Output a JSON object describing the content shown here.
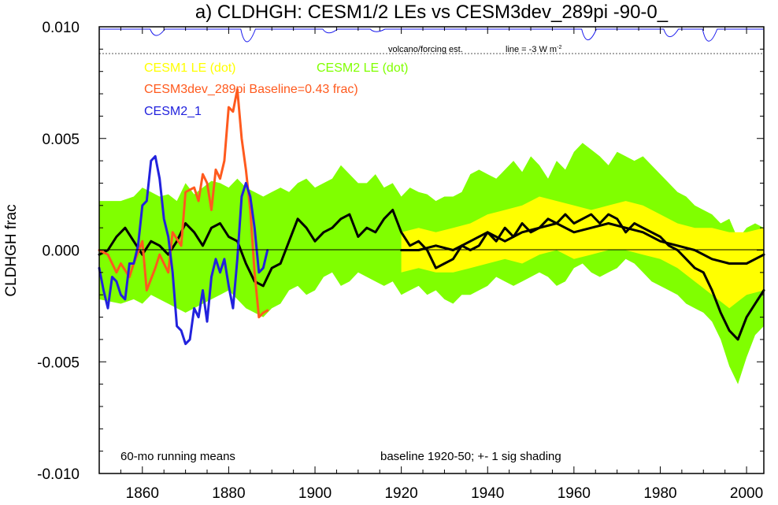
{
  "chart_data": {
    "type": "line",
    "title": "a) CLDHGH: CESM1/2 LEs vs CESM3dev_289pi -90-0_",
    "ylabel": "CLDHGH frac",
    "xlabel": "",
    "xlim": [
      1850,
      2004
    ],
    "ylim": [
      -0.01,
      0.01
    ],
    "x_ticks": [
      1860,
      1880,
      1900,
      1920,
      1940,
      1960,
      1980,
      2000
    ],
    "y_ticks": [
      {
        "value": 0.01,
        "label": "0.010"
      },
      {
        "value": 0.005,
        "label": "0.005"
      },
      {
        "value": 0.0,
        "label": "0.000"
      },
      {
        "value": -0.005,
        "label": "-0.005"
      },
      {
        "value": -0.01,
        "label": "-0.010"
      }
    ],
    "grid": false,
    "legend_entries": {
      "cesm1": "CESM1 LE (dot)",
      "cesm2": "CESM2 LE (dot)",
      "cesm3": "CESM3dev_289pi Baseline=0.43 frac)",
      "cesm2_1": "CESM2_1"
    },
    "annotations": {
      "volcano": "volcano/forcing est.",
      "line_label": "line = -3 W m",
      "line_sup": "-2",
      "running": "60-mo running means",
      "baseline": "baseline 1920-50; +- 1 sig shading"
    },
    "colors": {
      "cesm1_fill": "#ffff00",
      "cesm2_fill": "#80ff00",
      "cesm3": "#ff5a1e",
      "cesm2_1": "#2222dd",
      "ensemble_mean": "#000000",
      "volcano": "#1a1aee"
    },
    "volcano_dips": [
      {
        "year": 1863,
        "depth": 0.5
      },
      {
        "year": 1884,
        "depth": 1.0
      },
      {
        "year": 1903,
        "depth": 0.3
      },
      {
        "year": 1914,
        "depth": 0.2
      },
      {
        "year": 1963,
        "depth": 0.85
      },
      {
        "year": 1982,
        "depth": 0.6
      },
      {
        "year": 1991,
        "depth": 0.95
      }
    ],
    "series": [
      {
        "name": "CESM2 LE (dot)",
        "kind": "band",
        "x": [
          1850,
          1855,
          1858,
          1860,
          1862,
          1864,
          1866,
          1868,
          1870,
          1872,
          1874,
          1876,
          1878,
          1880,
          1882,
          1884,
          1886,
          1888,
          1890,
          1892,
          1894,
          1896,
          1898,
          1900,
          1902,
          1904,
          1906,
          1908,
          1910,
          1912,
          1914,
          1916,
          1918,
          1920,
          1922,
          1924,
          1926,
          1928,
          1930,
          1932,
          1934,
          1936,
          1938,
          1940,
          1942,
          1944,
          1946,
          1948,
          1950,
          1952,
          1954,
          1956,
          1958,
          1960,
          1962,
          1964,
          1966,
          1968,
          1970,
          1972,
          1974,
          1976,
          1978,
          1980,
          1982,
          1984,
          1986,
          1988,
          1990,
          1992,
          1994,
          1996,
          1998,
          2000,
          2002,
          2004
        ],
        "upper": [
          0.0022,
          0.0022,
          0.0024,
          0.0028,
          0.0026,
          0.0024,
          0.0025,
          0.0022,
          0.003,
          0.0025,
          0.0028,
          0.0031,
          0.003,
          0.0028,
          0.0032,
          0.0028,
          0.0026,
          0.0024,
          0.0026,
          0.0028,
          0.0026,
          0.003,
          0.0032,
          0.0028,
          0.003,
          0.0032,
          0.0038,
          0.0034,
          0.003,
          0.003,
          0.0034,
          0.0028,
          0.003,
          0.0024,
          0.0028,
          0.0026,
          0.0025,
          0.0022,
          0.0024,
          0.0024,
          0.0026,
          0.0034,
          0.0036,
          0.0034,
          0.0032,
          0.0036,
          0.004,
          0.0035,
          0.0042,
          0.0038,
          0.0032,
          0.004,
          0.0036,
          0.0044,
          0.0048,
          0.0045,
          0.0042,
          0.0038,
          0.0044,
          0.0042,
          0.004,
          0.0042,
          0.0038,
          0.0034,
          0.003,
          0.0026,
          0.0024,
          0.002,
          0.0018,
          0.0016,
          0.0012,
          0.0014,
          0.0005,
          0.001,
          0.0012,
          0.001
        ],
        "lower": [
          -0.0022,
          -0.0024,
          -0.0022,
          -0.0024,
          -0.002,
          -0.0022,
          -0.0024,
          -0.0026,
          -0.0028,
          -0.0026,
          -0.0024,
          -0.0022,
          -0.002,
          -0.0018,
          -0.0022,
          -0.0026,
          -0.0028,
          -0.003,
          -0.0026,
          -0.0024,
          -0.0018,
          -0.0016,
          -0.002,
          -0.0018,
          -0.0012,
          -0.001,
          -0.0016,
          -0.0014,
          -0.001,
          -0.0012,
          -0.0014,
          -0.0016,
          -0.0014,
          -0.002,
          -0.0018,
          -0.0016,
          -0.002,
          -0.0018,
          -0.0022,
          -0.0024,
          -0.002,
          -0.002,
          -0.0018,
          -0.0016,
          -0.0012,
          -0.0014,
          -0.0016,
          -0.0014,
          -0.0012,
          -0.001,
          -0.0012,
          -0.0016,
          -0.0014,
          -0.0008,
          -0.0006,
          -0.001,
          -0.0012,
          -0.001,
          -0.0008,
          -0.0004,
          -0.0006,
          -0.001,
          -0.0014,
          -0.0016,
          -0.0018,
          -0.002,
          -0.0024,
          -0.0026,
          -0.0028,
          -0.0032,
          -0.004,
          -0.0052,
          -0.006,
          -0.0048,
          -0.0038,
          -0.0034
        ]
      },
      {
        "name": "CESM1 LE (dot)",
        "kind": "band",
        "x": [
          1920,
          1924,
          1928,
          1932,
          1936,
          1940,
          1944,
          1948,
          1952,
          1956,
          1960,
          1964,
          1968,
          1972,
          1976,
          1980,
          1984,
          1988,
          1992,
          1996,
          2000,
          2004
        ],
        "upper": [
          0.0008,
          0.001,
          0.0008,
          0.001,
          0.0012,
          0.0016,
          0.0018,
          0.002,
          0.0024,
          0.0022,
          0.002,
          0.0018,
          0.002,
          0.0022,
          0.002,
          0.0016,
          0.0012,
          0.001,
          0.001,
          0.0008,
          0.0008,
          0.001
        ],
        "lower": [
          -0.001,
          -0.0008,
          -0.001,
          -0.001,
          -0.0008,
          -0.0006,
          -0.0004,
          -0.0006,
          -0.0002,
          0.0,
          -0.0004,
          -0.0002,
          0.0,
          0.0,
          -0.0002,
          -0.0004,
          -0.0008,
          -0.0014,
          -0.002,
          -0.0026,
          -0.002,
          -0.0018
        ]
      },
      {
        "name": "CESM2 LE (dot)",
        "kind": "mean",
        "x": [
          1850,
          1852,
          1854,
          1856,
          1858,
          1860,
          1862,
          1864,
          1866,
          1868,
          1870,
          1872,
          1874,
          1876,
          1878,
          1880,
          1882,
          1884,
          1886,
          1888,
          1890,
          1892,
          1894,
          1896,
          1898,
          1900,
          1902,
          1904,
          1906,
          1908,
          1910,
          1912,
          1914,
          1916,
          1918,
          1920,
          1922,
          1924,
          1926,
          1928,
          1930,
          1932,
          1934,
          1936,
          1938,
          1940,
          1942,
          1944,
          1946,
          1948,
          1950,
          1952,
          1954,
          1956,
          1958,
          1960,
          1962,
          1964,
          1966,
          1968,
          1970,
          1972,
          1974,
          1976,
          1978,
          1980,
          1982,
          1984,
          1986,
          1988,
          1990,
          1992,
          1994,
          1996,
          1998,
          2000,
          2002,
          2004
        ],
        "y": [
          -0.0002,
          0.0,
          0.0006,
          0.001,
          0.0004,
          -0.0002,
          0.0004,
          0.0002,
          -0.0002,
          0.0004,
          0.0012,
          0.0008,
          0.0002,
          0.001,
          0.0012,
          0.0006,
          0.0004,
          -0.0006,
          -0.0014,
          -0.0016,
          -0.0008,
          -0.0006,
          0.0004,
          0.0014,
          0.001,
          0.0004,
          0.0008,
          0.001,
          0.0014,
          0.0016,
          0.0006,
          0.001,
          0.0008,
          0.0014,
          0.0018,
          0.0008,
          0.0002,
          0.0004,
          0.0,
          -0.0008,
          -0.0006,
          -0.0004,
          0.0002,
          0.0,
          0.0002,
          0.0008,
          0.0004,
          0.001,
          0.0006,
          0.0012,
          0.0008,
          0.001,
          0.0014,
          0.0012,
          0.0016,
          0.0012,
          0.0014,
          0.0016,
          0.0012,
          0.0016,
          0.0014,
          0.0008,
          0.0012,
          0.001,
          0.0008,
          0.0006,
          0.0002,
          0.0,
          -0.0004,
          -0.0008,
          -0.001,
          -0.0018,
          -0.0028,
          -0.0036,
          -0.004,
          -0.003,
          -0.0024,
          -0.0018
        ]
      },
      {
        "name": "CESM1 LE (dot)",
        "kind": "mean",
        "x": [
          1920,
          1924,
          1928,
          1932,
          1936,
          1940,
          1944,
          1948,
          1952,
          1956,
          1960,
          1964,
          1968,
          1972,
          1976,
          1980,
          1984,
          1988,
          1992,
          1996,
          2000,
          2004
        ],
        "y": [
          0.0,
          0.0,
          0.0002,
          0.0,
          0.0004,
          0.0008,
          0.0004,
          0.0008,
          0.001,
          0.0012,
          0.0008,
          0.001,
          0.0012,
          0.001,
          0.0008,
          0.0004,
          0.0002,
          0.0,
          -0.0004,
          -0.0006,
          -0.0006,
          -0.0002
        ]
      },
      {
        "name": "CESM3dev_289pi Baseline=0.43 frac)",
        "kind": "line",
        "x": [
          1850,
          1852,
          1854,
          1855,
          1857,
          1858,
          1860,
          1861,
          1863,
          1864,
          1866,
          1867,
          1869,
          1870,
          1872,
          1873,
          1874,
          1875,
          1876,
          1877,
          1878,
          1879,
          1880,
          1881,
          1882,
          1883,
          1884,
          1885,
          1886,
          1887,
          1888,
          1889
        ],
        "y": [
          0.0,
          -0.0002,
          -0.001,
          -0.0006,
          -0.0012,
          -0.0006,
          0.0004,
          -0.0018,
          -0.0008,
          -0.0002,
          -0.001,
          0.0008,
          0.0002,
          0.0026,
          0.0028,
          0.0022,
          0.0034,
          0.003,
          0.0018,
          0.0036,
          0.0032,
          0.004,
          0.0064,
          0.0062,
          0.0072,
          0.005,
          0.0036,
          0.0018,
          -0.001,
          -0.003,
          -0.0028,
          -0.0027
        ]
      },
      {
        "name": "CESM2_1",
        "kind": "line",
        "x": [
          1850,
          1851,
          1852,
          1853,
          1854,
          1855,
          1856,
          1857,
          1858,
          1859,
          1860,
          1861,
          1862,
          1863,
          1864,
          1865,
          1866,
          1867,
          1868,
          1869,
          1870,
          1871,
          1872,
          1873,
          1874,
          1875,
          1876,
          1877,
          1878,
          1879,
          1880,
          1881,
          1882,
          1883,
          1884,
          1885,
          1886,
          1887,
          1888,
          1889
        ],
        "y": [
          -0.0008,
          -0.0018,
          -0.0026,
          -0.0012,
          -0.0014,
          -0.002,
          -0.0022,
          -0.0006,
          -0.0006,
          0.0002,
          0.002,
          0.0022,
          0.004,
          0.0042,
          0.0032,
          0.0014,
          0.0006,
          -0.001,
          -0.0034,
          -0.0036,
          -0.0042,
          -0.004,
          -0.0026,
          -0.003,
          -0.0018,
          -0.0032,
          -0.0012,
          -0.0004,
          -0.001,
          -0.0004,
          -0.0016,
          -0.0026,
          -0.0004,
          0.0024,
          0.003,
          0.0024,
          0.001,
          -0.001,
          -0.0008,
          0.0
        ]
      }
    ]
  }
}
